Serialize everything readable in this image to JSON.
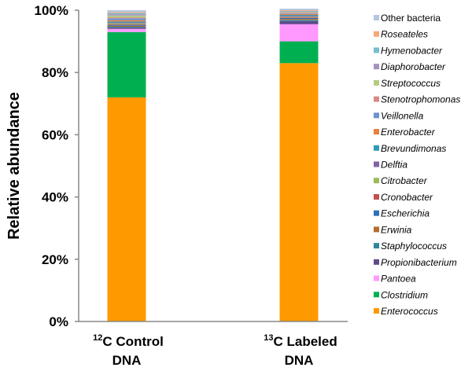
{
  "chart_data": {
    "type": "bar",
    "stacked": true,
    "title": "",
    "xlabel": "",
    "ylabel": "Relative abundance",
    "ylim": [
      0,
      100
    ],
    "yticks": [
      "0%",
      "20%",
      "40%",
      "60%",
      "80%",
      "100%"
    ],
    "categories": [
      {
        "sup": "12",
        "line1": "C Control",
        "line2": "DNA"
      },
      {
        "sup": "13",
        "line1": "C Labeled",
        "line2": "DNA"
      }
    ],
    "legend_position": "right",
    "series": [
      {
        "name": "Enterococcus",
        "color": "#FF9900",
        "values": [
          72.0,
          83.0
        ]
      },
      {
        "name": "Clostridium",
        "color": "#00B050",
        "values": [
          21.0,
          7.0
        ]
      },
      {
        "name": "Pantoea",
        "color": "#FF99FF",
        "values": [
          1.0,
          5.5
        ]
      },
      {
        "name": "Propionibacterium",
        "color": "#5F4B8B",
        "values": [
          0.4,
          1.0
        ]
      },
      {
        "name": "Staphylococcus",
        "color": "#31859C",
        "values": [
          0.3,
          0.4
        ]
      },
      {
        "name": "Erwinia",
        "color": "#B46B2E",
        "values": [
          0.3,
          0.3
        ]
      },
      {
        "name": "Escherichia",
        "color": "#2F6EBA",
        "values": [
          0.3,
          0.3
        ]
      },
      {
        "name": "Cronobacter",
        "color": "#C0504D",
        "values": [
          0.2,
          0.2
        ]
      },
      {
        "name": "Citrobacter",
        "color": "#9BBB59",
        "values": [
          0.3,
          0.2
        ]
      },
      {
        "name": "Delftia",
        "color": "#8064A2",
        "values": [
          0.3,
          0.3
        ]
      },
      {
        "name": "Brevundimonas",
        "color": "#2E9CB5",
        "values": [
          0.3,
          0.3
        ]
      },
      {
        "name": "Enterobacter",
        "color": "#E8803A",
        "values": [
          0.4,
          0.3
        ]
      },
      {
        "name": "Veillonella",
        "color": "#7091CF",
        "values": [
          0.6,
          0.2
        ]
      },
      {
        "name": "Stenotrophomonas",
        "color": "#D98A87",
        "values": [
          0.3,
          0.2
        ]
      },
      {
        "name": "Streptococcus",
        "color": "#B3CC82",
        "values": [
          0.6,
          0.2
        ]
      },
      {
        "name": "Diaphorobacter",
        "color": "#A391BF",
        "values": [
          0.4,
          0.2
        ]
      },
      {
        "name": "Hymenobacter",
        "color": "#78BDD0",
        "values": [
          0.4,
          0.2
        ]
      },
      {
        "name": "Roseateles",
        "color": "#F5A877",
        "values": [
          0.3,
          0.2
        ]
      },
      {
        "name": "Other bacteria",
        "color": "#B4C6E0",
        "values": [
          0.6,
          0.5
        ]
      }
    ]
  }
}
